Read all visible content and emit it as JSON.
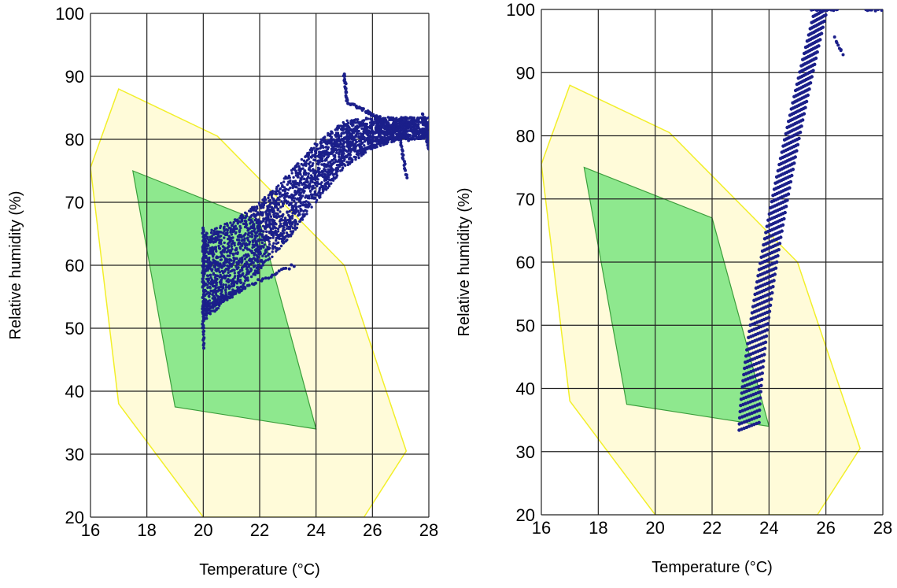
{
  "colors": {
    "comfort_outer_fill": "#fffbd9",
    "comfort_outer_stroke": "#f2ef2a",
    "comfort_inner_fill": "#8ee88e",
    "comfort_inner_stroke": "#3c9e3c",
    "points": "#1b1f8a",
    "grid": "#222222"
  },
  "chart_data": [
    {
      "type": "scatter",
      "title": "",
      "xlabel": "Temperature (°C)",
      "ylabel": "Relative humidity (%)",
      "xlim": [
        16,
        28
      ],
      "ylim": [
        20,
        100
      ],
      "x_ticks": [
        "16",
        "18",
        "20",
        "22",
        "24",
        "26",
        "28"
      ],
      "y_ticks": [
        "20",
        "30",
        "40",
        "50",
        "60",
        "70",
        "80",
        "90",
        "100"
      ],
      "grid": true,
      "polygons": [
        {
          "role": "outer comfort zone",
          "points": [
            [
              17,
              88
            ],
            [
              20.5,
              80.5
            ],
            [
              25,
              60
            ],
            [
              27.2,
              30.5
            ],
            [
              25.7,
              20
            ],
            [
              20,
              20
            ],
            [
              17,
              38
            ],
            [
              16,
              75.5
            ]
          ]
        },
        {
          "role": "inner comfort zone",
          "points": [
            [
              17.5,
              75
            ],
            [
              22,
              67
            ],
            [
              24,
              34
            ],
            [
              19,
              37.5
            ]
          ]
        }
      ],
      "scatter_regions": [
        {
          "shape": "band",
          "lower": [
            [
              20,
              51
            ],
            [
              21,
              55
            ],
            [
              22,
              59
            ],
            [
              23,
              64
            ],
            [
              24,
              70
            ],
            [
              25,
              75.5
            ],
            [
              26,
              78.5
            ],
            [
              27,
              80
            ],
            [
              28,
              80
            ]
          ],
          "upper": [
            [
              20,
              65
            ],
            [
              21,
              67
            ],
            [
              22,
              70
            ],
            [
              23,
              74.5
            ],
            [
              24,
              79.5
            ],
            [
              25,
              83
            ],
            [
              26,
              83.5
            ],
            [
              27,
              83.5
            ],
            [
              28,
              83.5
            ]
          ],
          "count": 3200
        },
        {
          "shape": "line",
          "from": [
            20,
            47
          ],
          "to": [
            20,
            66
          ],
          "count": 60
        },
        {
          "shape": "line",
          "from": [
            20,
            52.5
          ],
          "to": [
            21.5,
            56.5
          ],
          "count": 40
        },
        {
          "shape": "line",
          "from": [
            20,
            53.5
          ],
          "to": [
            23.2,
            60
          ],
          "count": 40
        },
        {
          "shape": "line",
          "from": [
            25,
            90.5
          ],
          "to": [
            25.1,
            86
          ],
          "count": 20
        },
        {
          "shape": "line",
          "from": [
            25.1,
            86
          ],
          "to": [
            26.2,
            83.5
          ],
          "count": 30
        },
        {
          "shape": "line",
          "from": [
            26.2,
            83.5
          ],
          "to": [
            27.3,
            80
          ],
          "count": 30
        },
        {
          "shape": "line",
          "from": [
            27,
            80
          ],
          "to": [
            27.2,
            74
          ],
          "count": 20
        },
        {
          "shape": "line",
          "from": [
            27.8,
            84
          ],
          "to": [
            28,
            80
          ],
          "count": 20
        },
        {
          "shape": "line",
          "from": [
            27.9,
            81
          ],
          "to": [
            28,
            78.5
          ],
          "count": 15
        }
      ]
    },
    {
      "type": "scatter",
      "title": "",
      "xlabel": "Temperature (°C)",
      "ylabel": "Relative humidity (%)",
      "xlim": [
        16,
        28
      ],
      "ylim": [
        20,
        100
      ],
      "x_ticks": [
        "16",
        "18",
        "20",
        "22",
        "24",
        "26",
        "28"
      ],
      "y_ticks": [
        "20",
        "30",
        "40",
        "50",
        "60",
        "70",
        "80",
        "90",
        "100"
      ],
      "grid": true,
      "polygons": [
        {
          "role": "outer comfort zone",
          "points": [
            [
              17,
              88
            ],
            [
              20.5,
              80.5
            ],
            [
              25,
              60
            ],
            [
              27.2,
              30.5
            ],
            [
              25.7,
              20
            ],
            [
              20,
              20
            ],
            [
              17,
              38
            ],
            [
              16,
              75.5
            ]
          ]
        },
        {
          "role": "inner comfort zone",
          "points": [
            [
              17.5,
              75
            ],
            [
              22,
              67
            ],
            [
              24,
              34
            ],
            [
              19,
              37.5
            ]
          ]
        }
      ],
      "scatter_regions": [
        {
          "shape": "dashes",
          "from": [
            23.3,
            34
          ],
          "to": [
            25.8,
            99.5
          ],
          "count": 68,
          "half_width_c": 0.35
        },
        {
          "shape": "line",
          "from": [
            25.5,
            100
          ],
          "to": [
            26.4,
            100
          ],
          "count": 18
        },
        {
          "shape": "line",
          "from": [
            26.3,
            95.5
          ],
          "to": [
            26.6,
            93
          ],
          "count": 8
        },
        {
          "shape": "line",
          "from": [
            27.4,
            100
          ],
          "to": [
            28,
            100
          ],
          "count": 14
        }
      ]
    }
  ]
}
